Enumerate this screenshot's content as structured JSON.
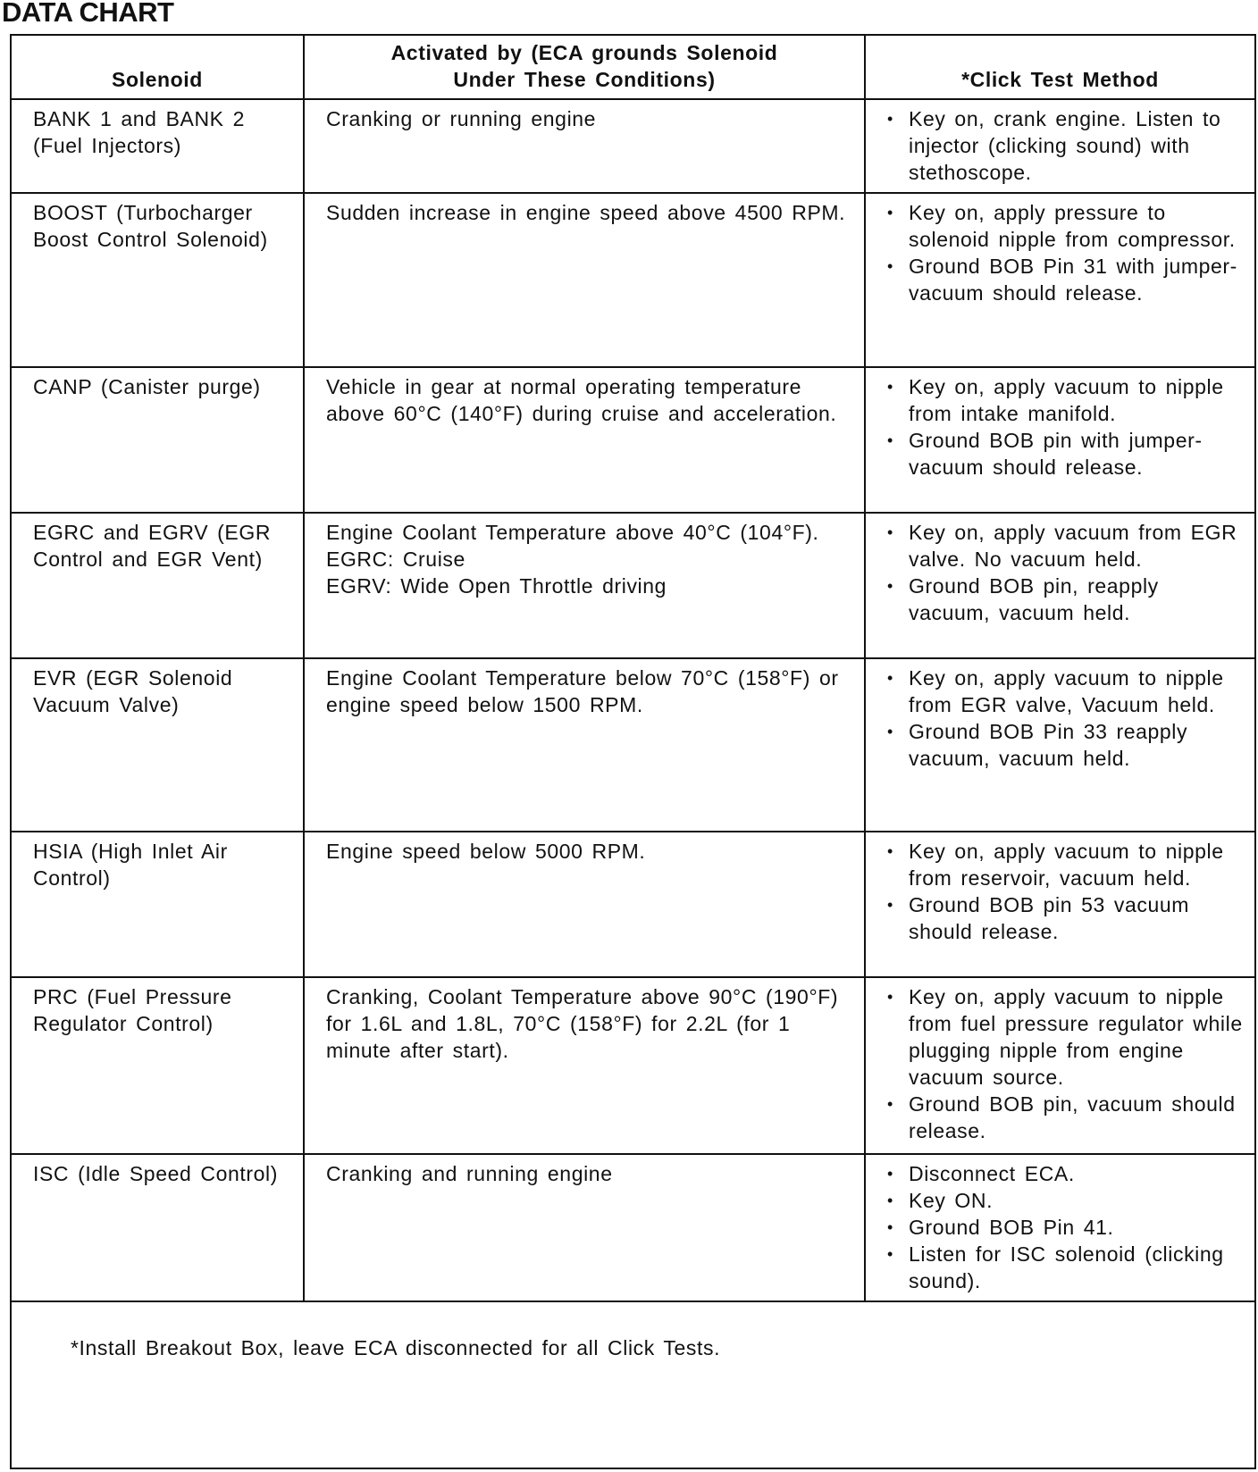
{
  "title": "DATA CHART",
  "headers": {
    "solenoid": "Solenoid",
    "activated": "Activated by (ECA grounds Solenoid Under These Conditions)",
    "method": "*Click Test Method"
  },
  "rows": [
    {
      "solenoid": "BANK 1 and BANK 2 (Fuel Injectors)",
      "activated": [
        "Cranking or running engine"
      ],
      "method": [
        "Key on, crank engine. Listen to injector (clicking sound) with stethoscope."
      ]
    },
    {
      "solenoid": "BOOST (Turbocharger Boost Control Solenoid)",
      "activated": [
        "Sudden increase in engine speed above 4500 RPM."
      ],
      "method": [
        "Key on, apply pressure to solenoid nipple from compressor.",
        "Ground BOB Pin 31 with jumper-vacuum should release."
      ]
    },
    {
      "solenoid": "CANP (Canister purge)",
      "activated": [
        "Vehicle in gear at normal operating temperature above 60°C (140°F) during cruise and acceleration."
      ],
      "method": [
        "Key on, apply vacuum to nipple from intake manifold.",
        "Ground BOB pin with jumper-vacuum should release."
      ]
    },
    {
      "solenoid": "EGRC and EGRV (EGR Control and EGR Vent)",
      "activated": [
        "Engine Coolant Temperature above 40°C (104°F).",
        "EGRC: Cruise",
        "EGRV: Wide Open Throttle driving"
      ],
      "method": [
        "Key on, apply vacuum from EGR valve. No vacuum held.",
        "Ground BOB pin, reapply vacuum, vacuum held."
      ]
    },
    {
      "solenoid": "EVR (EGR Solenoid Vacuum Valve)",
      "activated": [
        "Engine Coolant Temperature below 70°C (158°F) or engine speed below 1500 RPM."
      ],
      "method": [
        "Key on, apply vacuum to nipple from EGR valve, Vacuum held.",
        "Ground BOB Pin 33 reapply vacuum, vacuum held."
      ]
    },
    {
      "solenoid": "HSIA (High Inlet Air Control)",
      "activated": [
        "Engine speed below 5000 RPM."
      ],
      "method": [
        "Key on, apply vacuum to nipple from reservoir, vacuum held.",
        "Ground BOB pin 53 vacuum should release."
      ]
    },
    {
      "solenoid": "PRC (Fuel Pressure Regulator Control)",
      "activated": [
        "Cranking, Coolant Temperature above 90°C (190°F) for 1.6L and 1.8L, 70°C (158°F) for 2.2L (for 1 minute after start)."
      ],
      "method": [
        "Key on, apply vacuum to nipple from fuel pressure regulator while plugging nipple from engine vacuum source.",
        "Ground BOB pin, vacuum should release."
      ]
    },
    {
      "solenoid": "ISC (Idle Speed Control)",
      "activated": [
        "Cranking and running engine"
      ],
      "method": [
        "Disconnect ECA.",
        "Key ON.",
        "Ground BOB Pin 41.",
        "Listen for ISC solenoid (clicking sound)."
      ]
    }
  ],
  "footnote": "*Install Breakout Box, leave ECA disconnected for all Click Tests."
}
